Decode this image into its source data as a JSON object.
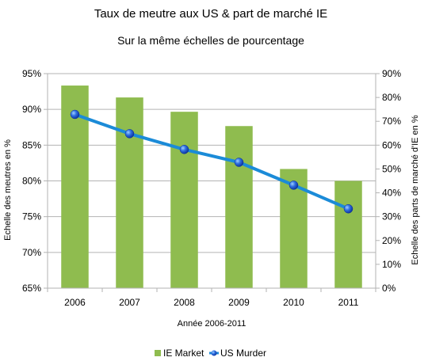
{
  "chart_data": {
    "type": "bar",
    "title": "Taux de meutre aux US & part de marché IE",
    "subtitle": "Sur la même échelles de pourcentage",
    "xlabel": "Année 2006-2011",
    "ylabel": "Echelle des meutres en %",
    "y2label": "Echelle des parts de marché d'IE en %",
    "categories": [
      "2006",
      "2007",
      "2008",
      "2009",
      "2010",
      "2011"
    ],
    "ylim": [
      65,
      95
    ],
    "y2lim": [
      0,
      90
    ],
    "yticks": [
      "95%",
      "90%",
      "85%",
      "80%",
      "75%",
      "70%",
      "65%"
    ],
    "y2ticks": [
      "90%",
      "80%",
      "70%",
      "60%",
      "50%",
      "40%",
      "30%",
      "20%",
      "10%",
      "0%"
    ],
    "grid": true,
    "legend_position": "bottom",
    "series": [
      {
        "name": "IE Market",
        "type": "bar",
        "axis": "right",
        "color": "#8fbc4f",
        "values": [
          85,
          80,
          74,
          68,
          50,
          45
        ]
      },
      {
        "name": "US Murder",
        "type": "line",
        "axis": "left",
        "color": "#1b8bd8",
        "marker_color": "#1f4fc4",
        "values": [
          89.3,
          86.6,
          84.4,
          82.6,
          79.4,
          76.1
        ]
      }
    ]
  }
}
